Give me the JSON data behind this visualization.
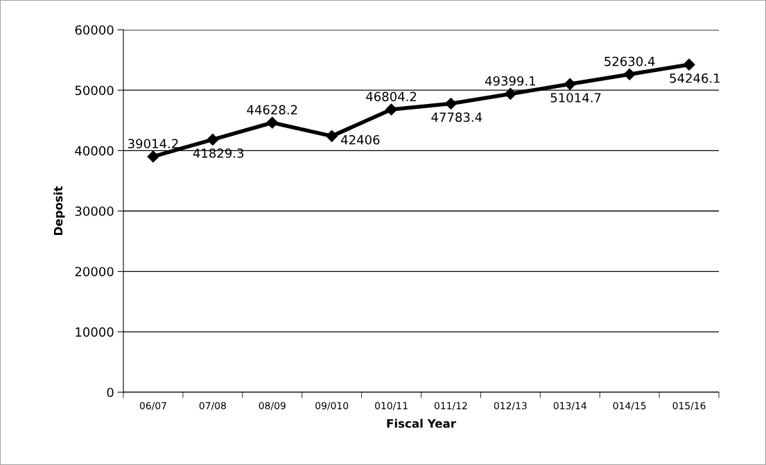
{
  "chart_data": {
    "type": "line",
    "xlabel": "Fiscal Year",
    "ylabel": "Deposit",
    "categories": [
      "06/07",
      "07/08",
      "08/09",
      "09/010",
      "010/11",
      "011/12",
      "012/13",
      "013/14",
      "014/15",
      "015/16"
    ],
    "series": [
      {
        "color": "#000000",
        "values": [
          39014.2,
          41829.3,
          44628.2,
          42406,
          46804.2,
          47783.4,
          49399.1,
          51014.7,
          52630.4,
          54246.1
        ]
      }
    ],
    "ylim": [
      0,
      60000
    ],
    "yticks": [
      0,
      10000,
      20000,
      30000,
      40000,
      50000,
      60000
    ],
    "grid": "y",
    "marker": "diamond",
    "line_style": "solid",
    "data_labels": true,
    "legend": false
  }
}
